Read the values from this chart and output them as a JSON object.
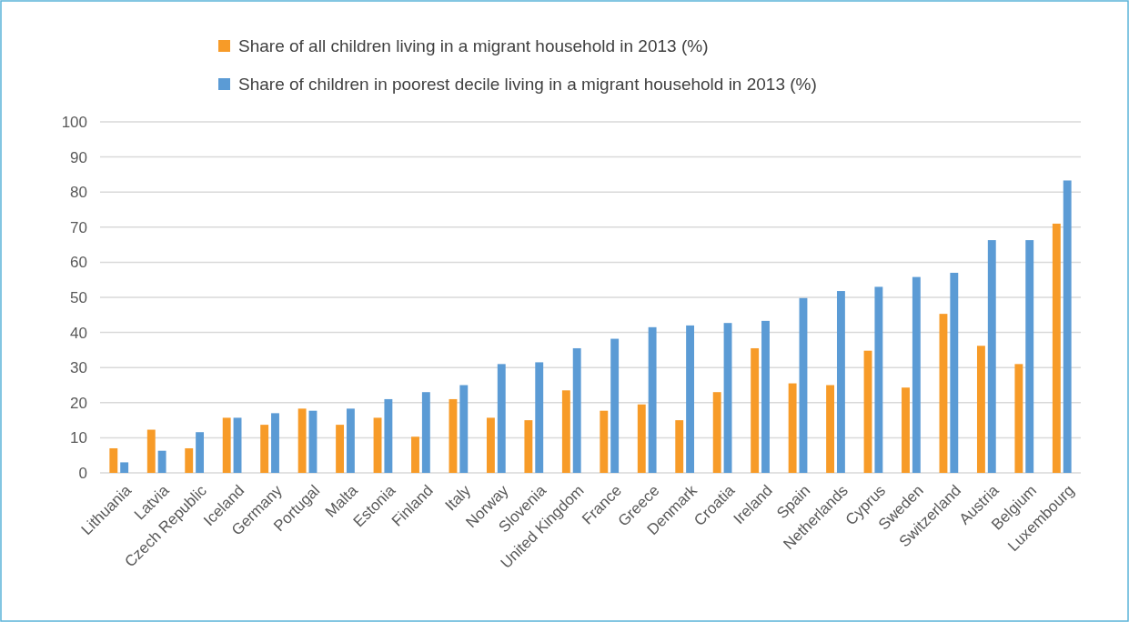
{
  "chart_data": {
    "type": "bar",
    "categories": [
      "Lithuania",
      "Latvia",
      "Czech Republic",
      "Iceland",
      "Germany",
      "Portugal",
      "Malta",
      "Estonia",
      "Finland",
      "Italy",
      "Norway",
      "Slovenia",
      "United Kingdom",
      "France",
      "Greece",
      "Denmark",
      "Croatia",
      "Ireland",
      "Spain",
      "Netherlands",
      "Cyprus",
      "Sweden",
      "Switzerland",
      "Austria",
      "Belgium",
      "Luxembourg"
    ],
    "series": [
      {
        "name": "Share of all children living in a migrant household in 2013 (%)",
        "color": "#f79b28",
        "values": [
          7,
          12.3,
          7,
          15.7,
          13.7,
          18.3,
          13.7,
          15.7,
          10.3,
          21,
          15.7,
          15,
          23.5,
          17.7,
          19.5,
          15,
          23,
          35.5,
          25.5,
          25,
          34.8,
          24.3,
          45.3,
          36.2,
          31,
          71
        ]
      },
      {
        "name": "Share of children in poorest decile living in a migrant household in 2013 (%)",
        "color": "#5b9bd5",
        "values": [
          3,
          6.3,
          11.6,
          15.7,
          17,
          17.7,
          18.3,
          21,
          23,
          25,
          31,
          31.5,
          35.5,
          38.2,
          41.5,
          42,
          42.7,
          43.3,
          49.8,
          51.8,
          53,
          55.8,
          57,
          66.3,
          66.3,
          83.3
        ]
      }
    ],
    "ylim": [
      0,
      100
    ],
    "yticks": [
      0,
      10,
      20,
      30,
      40,
      50,
      60,
      70,
      80,
      90,
      100
    ],
    "grid": "y",
    "legend": "top"
  }
}
